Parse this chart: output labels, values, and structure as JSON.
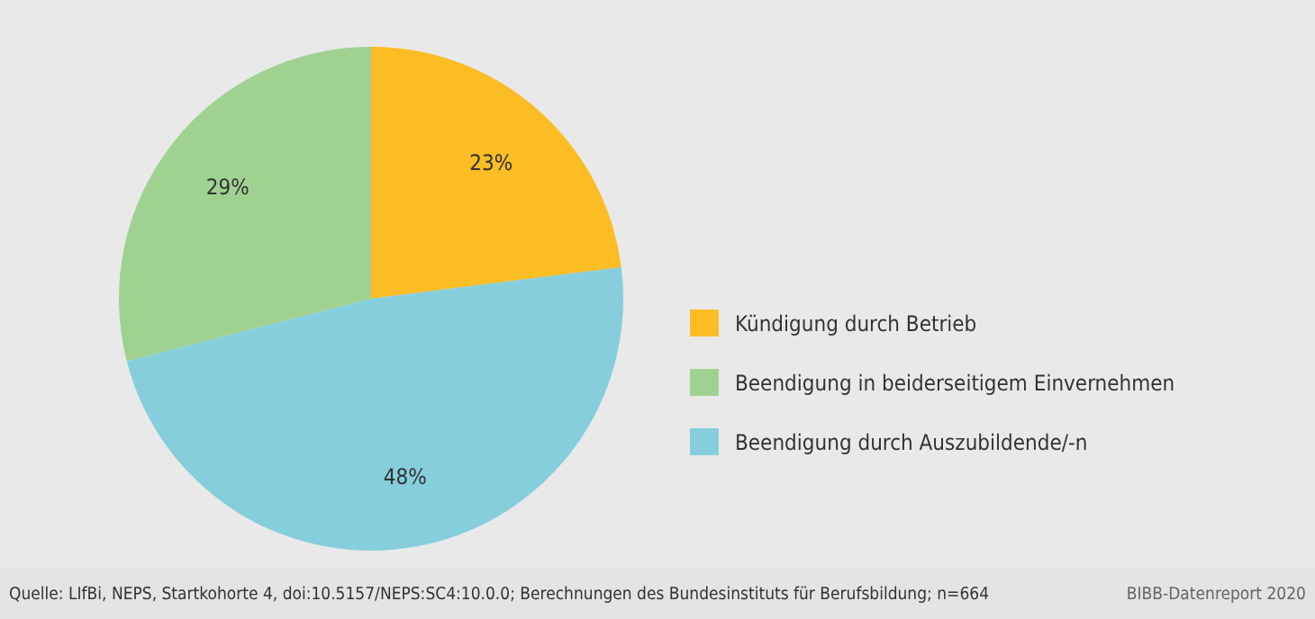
{
  "chart_data": {
    "type": "pie",
    "categories": [
      "Kündigung durch Betrieb",
      "Beendigung in beiderseitigem Einvernehmen",
      "Beendigung durch Auszubildende/-n"
    ],
    "values": [
      23,
      29,
      48
    ],
    "colors": [
      "#fbbc24",
      "#9fd290",
      "#86cedc"
    ],
    "value_labels": [
      "23%",
      "29%",
      "48%"
    ],
    "legend": "right",
    "annotations": [
      "Quelle: LIfBi, NEPS, Startkohorte 4, doi:10.5157/NEPS:SC4:10.0.0; Berechnungen des Bundesinstituts für Berufsbildung; n=664",
      "BIBB-Datenreport 2020"
    ]
  }
}
